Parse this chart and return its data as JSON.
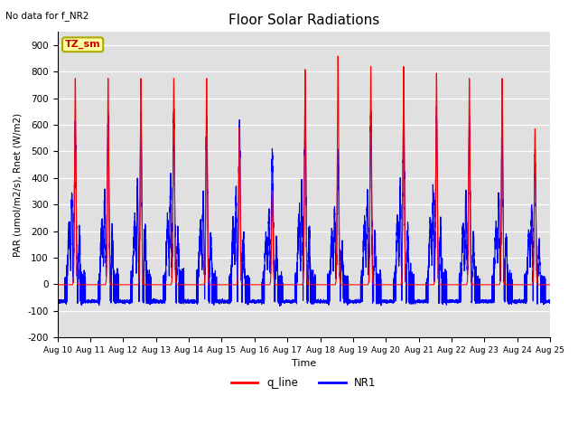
{
  "title": "Floor Solar Radiations",
  "subtitle": "No data for f_NR2",
  "xlabel": "Time",
  "ylabel": "PAR (umol/m2/s), Rnet (W/m2)",
  "ylim": [
    -200,
    950
  ],
  "yticks": [
    -200,
    -100,
    0,
    100,
    200,
    300,
    400,
    500,
    600,
    700,
    800,
    900
  ],
  "color_red": "#FF0000",
  "color_blue": "#0000FF",
  "bg_color": "#E0E0E0",
  "legend_labels": [
    "q_line",
    "NR1"
  ],
  "annotation_text": "TZ_sm",
  "annotation_box_color": "#FFFFA0",
  "annotation_box_edge": "#AAAA00",
  "n_days": 15,
  "q_peaks": [
    775,
    775,
    775,
    775,
    775,
    590,
    350,
    810,
    860,
    820,
    820,
    795,
    775,
    775,
    585
  ],
  "nr1_peaks": [
    600,
    630,
    640,
    650,
    600,
    600,
    490,
    660,
    500,
    635,
    640,
    640,
    600,
    605,
    490
  ],
  "q_night": -2,
  "nr1_night": -65
}
